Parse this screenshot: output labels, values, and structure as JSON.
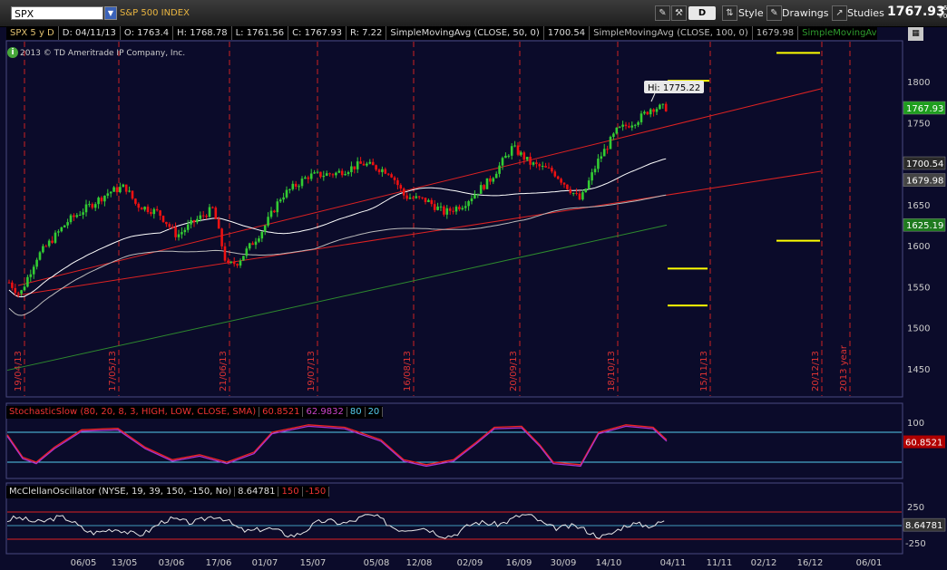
{
  "toolbar": {
    "symbol": "SPX",
    "symbol_name": "S&P 500 INDEX",
    "d_label": "D",
    "style_label": "Style",
    "drawings_label": "Drawings",
    "studies_label": "Studies",
    "last_price": "1767.93",
    "change_top": "+6",
    "change_bottom": "+0"
  },
  "info_bar": {
    "period": "SPX 5 y D",
    "date": "D: 04/11/13",
    "open": "O: 1763.4",
    "high": "H: 1768.78",
    "low": "L: 1761.56",
    "close": "C: 1767.93",
    "range": "R: 7.22",
    "sma50_label": "SimpleMovingAvg (CLOSE, 50, 0)",
    "sma50_value": "1700.54",
    "sma100_label": "SimpleMovingAvg (CLOSE, 100, 0)",
    "sma100_value": "1679.98",
    "sma200_label": "SimpleMovingAvg (C..."
  },
  "copyright": "2013 © TD Ameritrade IP Company, Inc.",
  "colors": {
    "background": "#0b0b2a",
    "up_candle": "#33cc33",
    "down_candle": "#ee1111",
    "channel": "#dd2222",
    "marker": "#ffff00",
    "sma50": "#ffffff",
    "sma100": "#bbbbbb",
    "sma200": "#2e8b2e"
  },
  "hi_label": "Hi: 1775.22",
  "price_axis": {
    "ticks": [
      "1800",
      "1750",
      "1700",
      "1650",
      "1600",
      "1550",
      "1500",
      "1450"
    ],
    "badges": [
      {
        "text": "1767.93",
        "color": "#1e9e1e"
      },
      {
        "text": "1700.54",
        "color": "#2a2a2a"
      },
      {
        "text": "1679.98",
        "color": "#444444"
      },
      {
        "text": "1625.19",
        "color": "#1e7a1e"
      }
    ]
  },
  "chart_data": {
    "type": "line",
    "title": "SPX 5 y D",
    "ylim": [
      1410,
      1845
    ],
    "xlabel": "",
    "ylabel": "",
    "series": [
      {
        "name": "SimpleMovingAvg (CLOSE, 50, 0)",
        "last": 1700.54
      },
      {
        "name": "SimpleMovingAvg (CLOSE, 100, 0)",
        "last": 1679.98
      },
      {
        "name": "SimpleMovingAvg (C...",
        "last": 1625.19
      }
    ],
    "high": 1775.22,
    "vertical_dates": [
      "19/04/13",
      "17/05/13",
      "21/06/13",
      "19/07/13",
      "16/08/13",
      "20/09/13",
      "18/10/13",
      "15/11/13",
      "20/12/13",
      "2013 year"
    ],
    "marker_levels": [
      1835,
      1801,
      1606,
      1572,
      1527
    ],
    "x_axis_ticks": [
      "06/05",
      "13/05",
      "03/06",
      "17/06",
      "01/07",
      "15/07",
      "05/08",
      "12/08",
      "02/09",
      "16/09",
      "30/09",
      "14/10",
      "04/11",
      "11/11",
      "02/12",
      "16/12",
      "06/01"
    ]
  },
  "stochastic": {
    "label": "StochasticSlow (80, 20, 8, 3, HIGH, LOW, CLOSE, SMA)",
    "value1": "60.8521",
    "value2": "62.9832",
    "over": "80",
    "under": "20",
    "axis_top": "100",
    "badge": "60.8521"
  },
  "mcclellan": {
    "label": "McClellanOscillator (NYSE, 19, 39, 150, -150, No)",
    "value": "8.64781",
    "upper": "150",
    "lower": "-150",
    "axis_top": "250",
    "axis_bottom": "-250",
    "badge": "8.64781"
  }
}
